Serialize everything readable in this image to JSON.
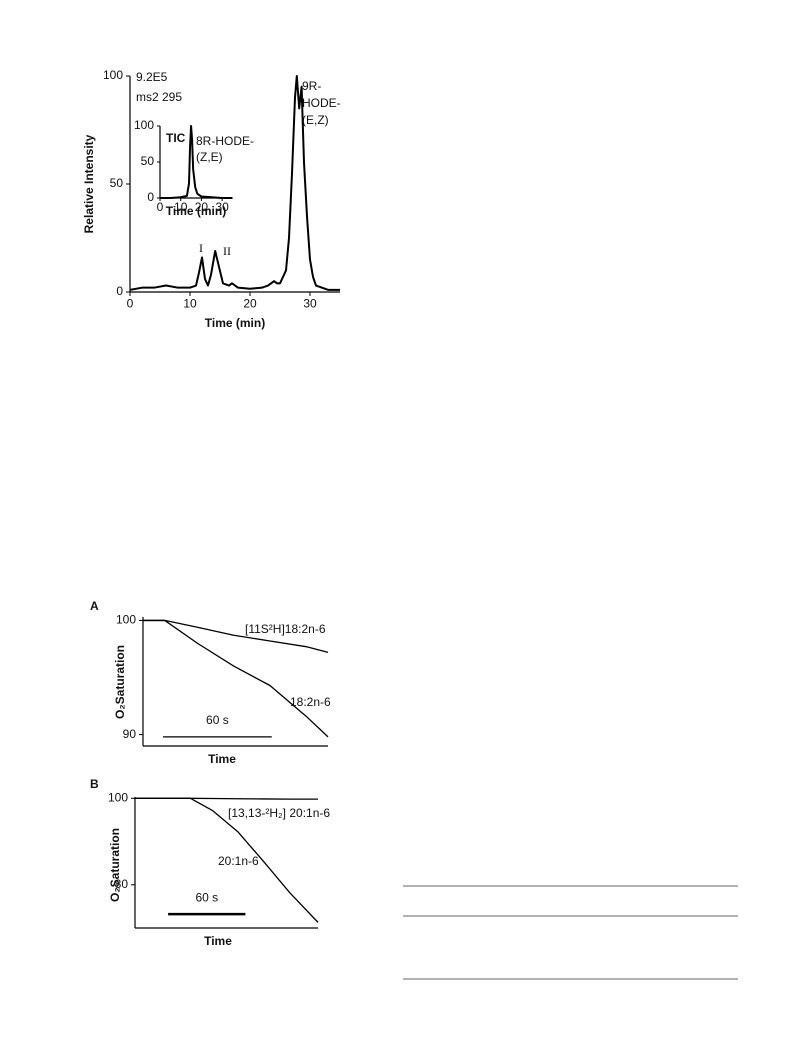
{
  "chart_data": [
    {
      "type": "line",
      "xlabel": "Time (min)",
      "ylabel": "Relative Intensity",
      "x": [
        0,
        2,
        4,
        6,
        8,
        10,
        11,
        11.5,
        12,
        12.5,
        13,
        13.5,
        14.2,
        14.8,
        15.5,
        16.5,
        17,
        18,
        20,
        22,
        23,
        24,
        24.5,
        25,
        26,
        26.5,
        27,
        27.5,
        27.8,
        28.2,
        28.6,
        29,
        29.5,
        30,
        30.5,
        31,
        32,
        33,
        35
      ],
      "series": [
        {
          "color": "#000000",
          "values": [
            1,
            2,
            2,
            3,
            2,
            2,
            3,
            9,
            16,
            6,
            3,
            8,
            19,
            12,
            4,
            3,
            4,
            2,
            1.5,
            2,
            3,
            5,
            4,
            4,
            10,
            25,
            55,
            90,
            100,
            85,
            95,
            60,
            35,
            15,
            7,
            3,
            2,
            1,
            1
          ]
        }
      ],
      "xlim": [
        0,
        35
      ],
      "xticks": [
        0,
        10,
        20,
        30
      ],
      "ylim": [
        0,
        100
      ],
      "yticks": [
        0,
        50,
        100
      ],
      "annotations": [
        "9.2E5",
        "ms2 295",
        "I",
        "II",
        "9R-",
        "HODE-",
        "(E,Z)"
      ]
    },
    {
      "type": "line",
      "xlabel": "Time (min)",
      "x": [
        0,
        5,
        10,
        13,
        14,
        14.5,
        15,
        15.5,
        16,
        17,
        18,
        20,
        25,
        30,
        35
      ],
      "series": [
        {
          "color": "#000000",
          "values": [
            0,
            0,
            1,
            3,
            20,
            70,
            100,
            80,
            40,
            15,
            6,
            2,
            1,
            0,
            0
          ]
        }
      ],
      "xlim": [
        0,
        35
      ],
      "xticks": [
        0,
        10,
        20,
        30
      ],
      "ylim": [
        0,
        100
      ],
      "yticks": [
        0,
        50,
        100
      ],
      "annotations": [
        "TIC",
        "8R-HODE-",
        "(Z,E)"
      ]
    },
    {
      "type": "line",
      "panel": "A",
      "xlabel": "Time",
      "ylabel": "O₂Saturation",
      "x": [
        0,
        12,
        30,
        50,
        70,
        90,
        102
      ],
      "series": [
        {
          "name": "[11S²H]18:2n-6",
          "color": "#000000",
          "values": [
            100,
            100,
            99.4,
            98.7,
            98.2,
            97.7,
            97.2
          ]
        },
        {
          "name": "18:2n-6",
          "color": "#000000",
          "values": [
            100,
            100,
            98.0,
            96.0,
            94.3,
            91.6,
            89.8
          ]
        }
      ],
      "xlim": [
        0,
        102
      ],
      "ylim": [
        89,
        100.3
      ],
      "yticks": [
        90,
        100
      ],
      "scale_bar": {
        "x": 11,
        "y": 89.8,
        "length": 60,
        "label": "60 s"
      }
    },
    {
      "type": "line",
      "panel": "B",
      "xlabel": "Time",
      "ylabel": "O₂Saturation",
      "x": [
        0,
        43,
        60,
        80,
        100,
        120,
        142
      ],
      "series": [
        {
          "name": "[13,13-²H₂] 20:1n-6",
          "color": "#000000",
          "values": [
            100,
            100,
            99.95,
            99.9,
            99.85,
            99.8,
            99.8
          ]
        },
        {
          "name": "20:1n-6",
          "color": "#000000",
          "values": [
            100,
            100,
            97.2,
            92.2,
            85.3,
            78.2,
            71.3
          ]
        }
      ],
      "xlim": [
        0,
        142
      ],
      "ylim": [
        70,
        100.3
      ],
      "yticks": [
        80,
        100
      ],
      "scale_bar": {
        "x": 25.7,
        "y": 73.2,
        "length": 60,
        "label": "60 s"
      }
    }
  ]
}
